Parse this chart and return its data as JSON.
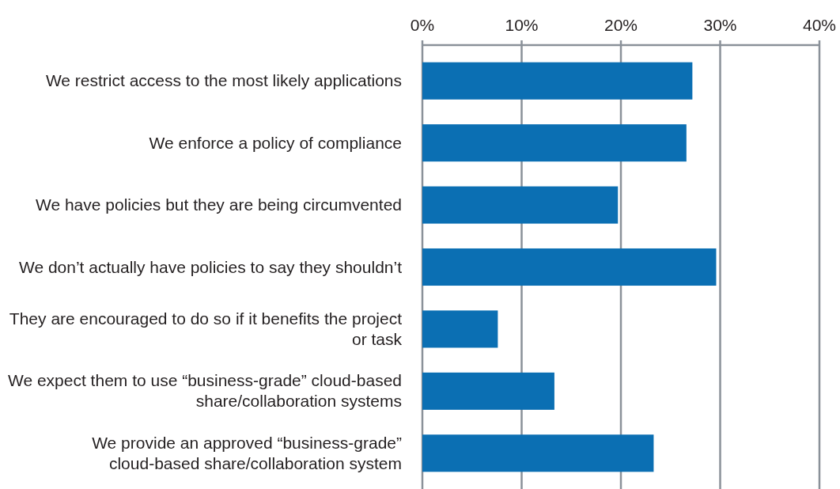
{
  "chart_data": {
    "type": "bar",
    "orientation": "horizontal",
    "categories": [
      "We restrict access to the most likely applications",
      "We enforce a policy of compliance",
      "We have policies but they are being circumvented",
      "We don’t actually have policies to say they shouldn’t",
      "They are encouraged to do so if it benefits the project or task",
      "We expect them to use “business-grade” cloud-based share/collaboration systems",
      "We provide an approved “business-grade” cloud-based share/collaboration system"
    ],
    "values": [
      27.2,
      26.6,
      19.7,
      29.6,
      7.6,
      13.3,
      23.3
    ],
    "color": "#0b6fb3",
    "xlim": [
      0,
      40
    ],
    "xticks": [
      {
        "value": 0,
        "label": "0%"
      },
      {
        "value": 10,
        "label": "10%"
      },
      {
        "value": 20,
        "label": "20%"
      },
      {
        "value": 30,
        "label": "30%"
      },
      {
        "value": 40,
        "label": "40%"
      }
    ],
    "grid": "x"
  }
}
